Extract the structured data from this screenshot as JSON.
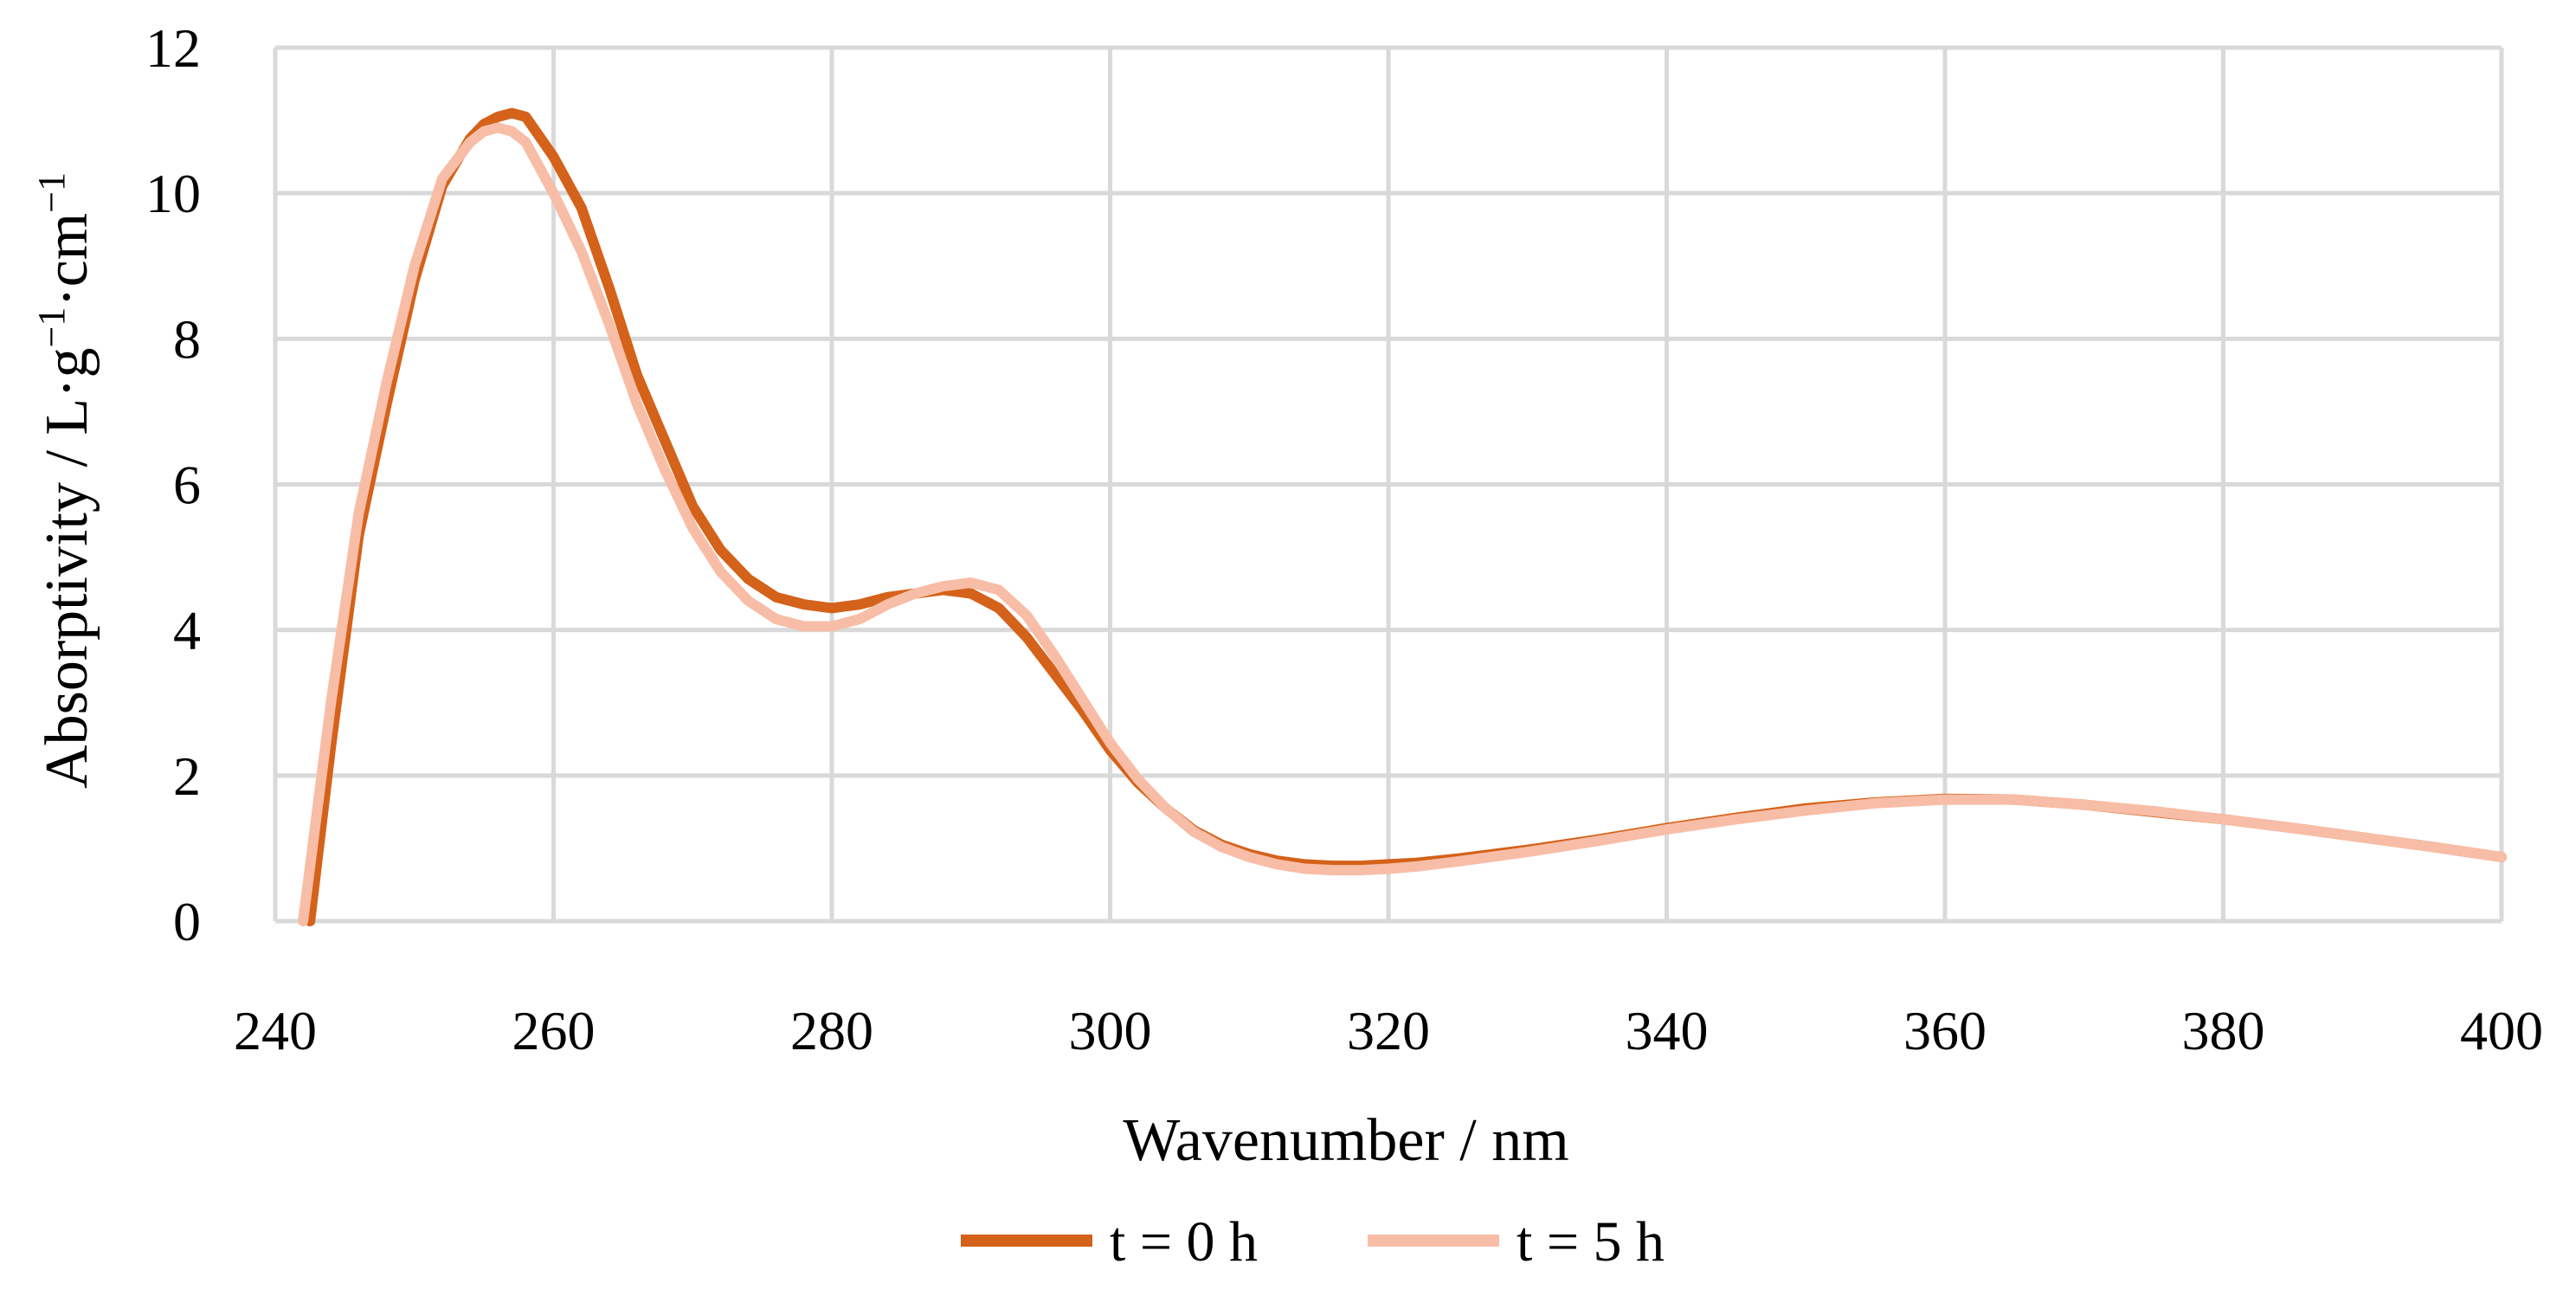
{
  "chart_data": {
    "type": "line",
    "title": "",
    "xlabel": "Wavenumber / nm",
    "ylabel": "Absorptivity / L·g",
    "ylabel_parts": [
      "Absorptivity / L·g",
      "−1",
      "·cm",
      "−1"
    ],
    "xlim": [
      240,
      400
    ],
    "ylim": [
      0,
      12
    ],
    "xticks": [
      "240",
      "260",
      "280",
      "300",
      "320",
      "340",
      "360",
      "380",
      "400"
    ],
    "yticks": [
      "0",
      "2",
      "4",
      "6",
      "8",
      "10",
      "12"
    ],
    "grid": true,
    "legend_position": "bottom",
    "series": [
      {
        "name": "t = 0 h",
        "color": "#d4621a",
        "x": [
          242.5,
          244,
          246,
          248,
          250,
          252,
          254,
          255,
          256,
          257,
          258,
          260,
          262,
          264,
          266,
          268,
          270,
          272,
          274,
          276,
          278,
          280,
          282,
          284,
          286,
          288,
          290,
          292,
          294,
          296,
          298,
          300,
          302,
          304,
          306,
          308,
          310,
          312,
          314,
          316,
          318,
          320,
          322,
          325,
          330,
          335,
          340,
          345,
          350,
          355,
          360,
          365,
          370,
          375,
          380,
          385,
          390,
          395,
          400
        ],
        "values": [
          0,
          2.4,
          5.3,
          7.1,
          8.8,
          10.1,
          10.75,
          10.95,
          11.05,
          11.1,
          11.05,
          10.5,
          9.8,
          8.7,
          7.5,
          6.6,
          5.7,
          5.1,
          4.7,
          4.45,
          4.35,
          4.3,
          4.35,
          4.45,
          4.5,
          4.55,
          4.5,
          4.3,
          3.9,
          3.4,
          2.9,
          2.35,
          1.9,
          1.55,
          1.25,
          1.05,
          0.92,
          0.83,
          0.78,
          0.76,
          0.76,
          0.78,
          0.8,
          0.86,
          0.98,
          1.12,
          1.28,
          1.42,
          1.55,
          1.63,
          1.68,
          1.67,
          1.6,
          1.5,
          1.4,
          1.28,
          1.15,
          1.02,
          0.88
        ]
      },
      {
        "name": "t = 5 h",
        "color": "#f8bda6",
        "x": [
          242,
          244,
          246,
          248,
          250,
          252,
          254,
          255,
          256,
          257,
          258,
          260,
          262,
          264,
          266,
          268,
          270,
          272,
          274,
          276,
          278,
          280,
          282,
          284,
          286,
          288,
          290,
          292,
          294,
          296,
          298,
          300,
          302,
          304,
          306,
          308,
          310,
          312,
          314,
          316,
          318,
          320,
          322,
          325,
          330,
          335,
          340,
          345,
          350,
          355,
          360,
          365,
          370,
          375,
          380,
          385,
          390,
          395,
          400
        ],
        "values": [
          0,
          3.0,
          5.6,
          7.4,
          9.0,
          10.2,
          10.7,
          10.85,
          10.9,
          10.85,
          10.7,
          10.0,
          9.2,
          8.2,
          7.1,
          6.2,
          5.4,
          4.8,
          4.4,
          4.15,
          4.05,
          4.05,
          4.15,
          4.35,
          4.5,
          4.6,
          4.65,
          4.55,
          4.2,
          3.65,
          3.05,
          2.45,
          1.95,
          1.55,
          1.23,
          1.02,
          0.88,
          0.78,
          0.72,
          0.7,
          0.7,
          0.72,
          0.75,
          0.82,
          0.95,
          1.1,
          1.26,
          1.4,
          1.52,
          1.62,
          1.67,
          1.67,
          1.6,
          1.51,
          1.4,
          1.28,
          1.15,
          1.02,
          0.88
        ]
      }
    ]
  }
}
